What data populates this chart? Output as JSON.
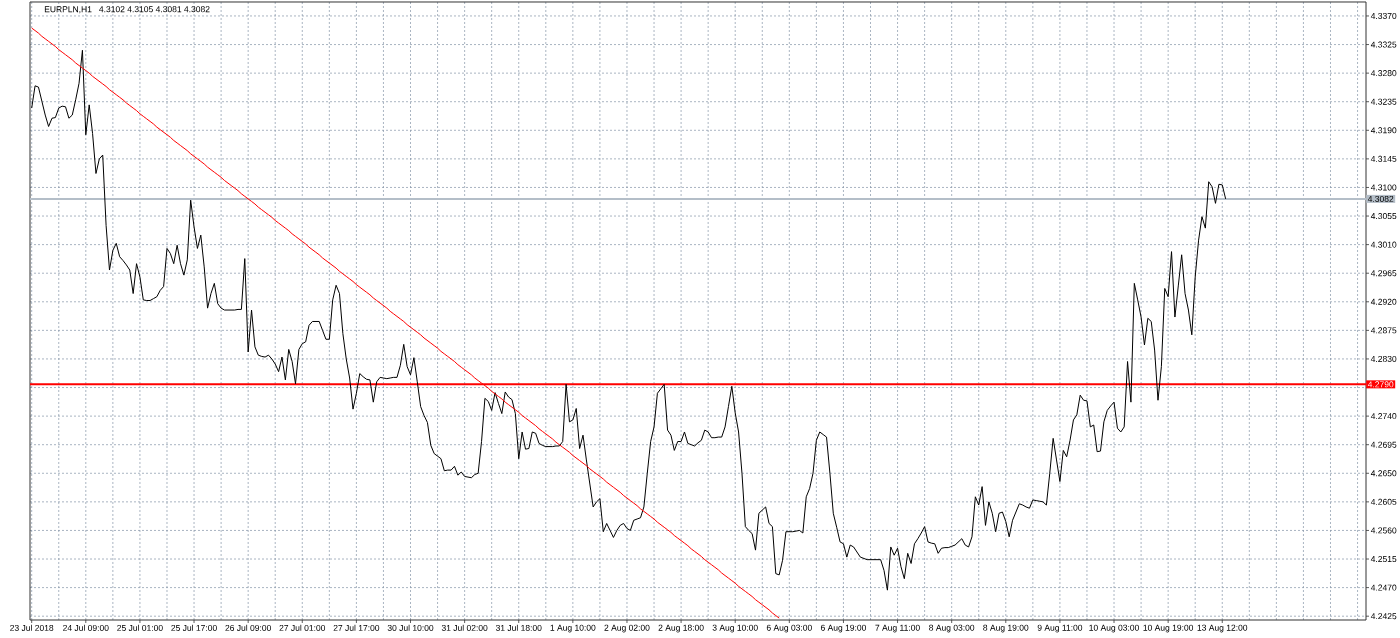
{
  "chart_data": {
    "type": "line",
    "title": "EURPLN,H1",
    "subtitle": "4.3102 4.3105 4.3081 4.3082",
    "categories": [
      "23 Jul 2018",
      null,
      null,
      null,
      null,
      null,
      null,
      null,
      null,
      null,
      null,
      null,
      null,
      null,
      null,
      null,
      "24 Jul 09:00",
      null,
      null,
      null,
      null,
      null,
      null,
      null,
      null,
      null,
      null,
      null,
      null,
      null,
      null,
      null,
      "25 Jul 01:00",
      null,
      null,
      null,
      null,
      null,
      null,
      null,
      null,
      null,
      null,
      null,
      null,
      null,
      null,
      null,
      "25 Jul 17:00",
      null,
      null,
      null,
      null,
      null,
      null,
      null,
      null,
      null,
      null,
      null,
      null,
      null,
      null,
      null,
      "26 Jul 09:00",
      null,
      null,
      null,
      null,
      null,
      null,
      null,
      null,
      null,
      null,
      null,
      null,
      null,
      null,
      null,
      "27 Jul 01:00",
      null,
      null,
      null,
      null,
      null,
      null,
      null,
      null,
      null,
      null,
      null,
      null,
      null,
      null,
      null,
      "27 Jul 17:00",
      null,
      null,
      null,
      null,
      null,
      null,
      null,
      null,
      null,
      null,
      null,
      null,
      null,
      null,
      null,
      "30 Jul 10:00",
      null,
      null,
      null,
      null,
      null,
      null,
      null,
      null,
      null,
      null,
      null,
      null,
      null,
      null,
      null,
      "31 Jul 02:00",
      null,
      null,
      null,
      null,
      null,
      null,
      null,
      null,
      null,
      null,
      null,
      null,
      null,
      null,
      null,
      "31 Jul 18:00",
      null,
      null,
      null,
      null,
      null,
      null,
      null,
      null,
      null,
      null,
      null,
      null,
      null,
      null,
      null,
      "1 Aug 10:00",
      null,
      null,
      null,
      null,
      null,
      null,
      null,
      null,
      null,
      null,
      null,
      null,
      null,
      null,
      null,
      "2 Aug 02:00",
      null,
      null,
      null,
      null,
      null,
      null,
      null,
      null,
      null,
      null,
      null,
      null,
      null,
      null,
      null,
      "2 Aug 18:00",
      null,
      null,
      null,
      null,
      null,
      null,
      null,
      null,
      null,
      null,
      null,
      null,
      null,
      null,
      null,
      "3 Aug 10:00",
      null,
      null,
      null,
      null,
      null,
      null,
      null,
      null,
      null,
      null,
      null,
      null,
      null,
      null,
      null,
      "6 Aug 03:00",
      null,
      null,
      null,
      null,
      null,
      null,
      null,
      null,
      null,
      null,
      null,
      null,
      null,
      null,
      null,
      "6 Aug 19:00",
      null,
      null,
      null,
      null,
      null,
      null,
      null,
      null,
      null,
      null,
      null,
      null,
      null,
      null,
      null,
      "7 Aug 11:00",
      null,
      null,
      null,
      null,
      null,
      null,
      null,
      null,
      null,
      null,
      null,
      null,
      null,
      null,
      null,
      "8 Aug 03:00",
      null,
      null,
      null,
      null,
      null,
      null,
      null,
      null,
      null,
      null,
      null,
      null,
      null,
      null,
      null,
      "8 Aug 19:00",
      null,
      null,
      null,
      null,
      null,
      null,
      null,
      null,
      null,
      null,
      null,
      null,
      null,
      null,
      null,
      "9 Aug 11:00",
      null,
      null,
      null,
      null,
      null,
      null,
      null,
      null,
      null,
      null,
      null,
      null,
      null,
      null,
      null,
      "10 Aug 03:00",
      null,
      null,
      null,
      null,
      null,
      null,
      null,
      null,
      null,
      null,
      null,
      null,
      null,
      null,
      null,
      "10 Aug 19:00",
      null,
      null,
      null,
      null,
      null,
      null,
      null,
      null,
      null,
      null,
      null,
      null,
      null,
      null,
      null,
      "13 Aug 12:00",
      null,
      null,
      null,
      null,
      null,
      null,
      null,
      null,
      null,
      null,
      null,
      null,
      null,
      null,
      null,
      null,
      null,
      null,
      null,
      null,
      null,
      null,
      null,
      null,
      null,
      null,
      null,
      null,
      null,
      null,
      null,
      null,
      null,
      null,
      null,
      null,
      null,
      null,
      null,
      null,
      null,
      null
    ],
    "series": [
      {
        "color": "#000000",
        "values": [
          4.3225,
          4.326,
          4.3258,
          4.3236,
          4.3214,
          4.3196,
          4.3209,
          4.321,
          4.3225,
          4.3228,
          4.3227,
          4.3209,
          4.3214,
          4.3238,
          4.3264,
          4.3316,
          4.3183,
          4.323,
          4.3185,
          4.3122,
          4.3145,
          4.3151,
          4.304,
          4.297,
          4.3001,
          4.3012,
          4.2991,
          4.2985,
          4.2978,
          4.297,
          4.2933,
          4.298,
          4.2959,
          4.2923,
          4.2922,
          4.2922,
          4.2925,
          4.2928,
          4.2938,
          4.2944,
          4.3004,
          4.2996,
          4.298,
          4.3009,
          4.298,
          4.2962,
          4.2986,
          4.308,
          4.3038,
          4.3004,
          4.3025,
          4.2975,
          4.291,
          4.2933,
          4.2949,
          4.2917,
          4.291,
          4.2907,
          4.2907,
          4.2907,
          4.2907,
          4.2908,
          4.2908,
          4.2988,
          4.2841,
          4.2907,
          4.2849,
          4.2836,
          4.2834,
          4.2833,
          4.2836,
          4.283,
          4.2822,
          4.281,
          4.2833,
          4.2797,
          4.2845,
          4.2826,
          4.2791,
          4.2845,
          4.2854,
          4.2857,
          4.2883,
          4.2889,
          4.2889,
          4.2889,
          4.2875,
          4.2861,
          4.2861,
          4.2923,
          4.2946,
          4.2933,
          4.287,
          4.283,
          4.28,
          4.2751,
          4.2776,
          4.2807,
          4.2802,
          4.2798,
          4.2797,
          4.2762,
          4.2794,
          4.2801,
          4.28,
          4.2799,
          4.28,
          4.2801,
          4.2801,
          4.282,
          4.2853,
          4.2818,
          4.2805,
          4.2832,
          4.2794,
          4.2755,
          4.2741,
          4.273,
          4.2694,
          4.2681,
          4.2677,
          4.2673,
          4.2654,
          4.2655,
          4.2655,
          4.2661,
          4.2647,
          4.2652,
          4.2645,
          4.2644,
          4.2643,
          4.2648,
          4.265,
          4.27,
          4.2768,
          4.2763,
          4.2749,
          4.2777,
          4.276,
          4.2744,
          4.2778,
          4.277,
          4.2766,
          4.2744,
          4.2673,
          4.2715,
          4.2688,
          4.2689,
          4.2715,
          4.2713,
          4.2697,
          4.2694,
          4.2692,
          4.2692,
          4.2692,
          4.2693,
          4.2693,
          4.27,
          4.279,
          4.2731,
          4.2734,
          4.2752,
          4.2689,
          4.271,
          4.2671,
          4.2634,
          4.2597,
          4.2605,
          4.261,
          4.2558,
          4.2571,
          4.256,
          4.2549,
          4.256,
          4.2568,
          4.2571,
          4.2563,
          4.256,
          4.2576,
          4.2578,
          4.258,
          4.2597,
          4.265,
          4.27,
          4.2723,
          4.2776,
          4.2783,
          4.279,
          4.2718,
          4.271,
          4.2686,
          4.27,
          4.27,
          4.2715,
          4.2697,
          4.2695,
          4.2693,
          4.2698,
          4.2702,
          4.2718,
          4.2715,
          4.2706,
          4.2706,
          4.2707,
          4.2707,
          4.2723,
          4.2755,
          4.2787,
          4.2745,
          4.2715,
          4.265,
          4.2566,
          4.256,
          4.2555,
          4.2529,
          4.2587,
          4.2592,
          4.2597,
          4.2571,
          4.2566,
          4.2492,
          4.249,
          4.2513,
          4.2558,
          4.2558,
          4.2558,
          4.2559,
          4.256,
          4.2556,
          4.2613,
          4.2626,
          4.265,
          4.2702,
          4.2715,
          4.2711,
          4.2707,
          4.265,
          4.2587,
          4.2565,
          4.2542,
          4.2539,
          4.2518,
          4.2537,
          4.2534,
          4.2526,
          4.2518,
          4.2516,
          4.2514,
          4.2514,
          4.2514,
          4.2514,
          4.2514,
          4.2497,
          4.2466,
          4.2534,
          4.2521,
          4.2532,
          4.2503,
          4.2484,
          4.2524,
          4.2508,
          4.2539,
          4.2547,
          4.2556,
          4.2566,
          4.2542,
          4.254,
          4.2539,
          4.2524,
          4.2532,
          4.2533,
          4.2533,
          4.2535,
          4.2537,
          4.2542,
          4.2547,
          4.2537,
          4.2534,
          4.255,
          4.2613,
          4.26,
          4.2629,
          4.2568,
          4.2605,
          4.2587,
          4.2558,
          4.2587,
          4.2589,
          4.2574,
          4.255,
          4.2576,
          4.2589,
          4.2602,
          4.26,
          4.2597,
          4.2595,
          4.2608,
          4.2607,
          4.2606,
          4.2605,
          4.26,
          4.265,
          4.2705,
          4.2671,
          4.2637,
          4.2686,
          4.2676,
          4.2702,
          4.2734,
          4.2742,
          4.2773,
          4.2765,
          4.2764,
          4.2723,
          4.2726,
          4.2684,
          4.2685,
          4.2731,
          4.2749,
          4.2756,
          4.2762,
          4.2721,
          4.2715,
          4.2723,
          4.2826,
          4.2762,
          4.2949,
          4.2923,
          4.2896,
          4.2852,
          4.2894,
          4.2889,
          4.2844,
          4.2765,
          4.2818,
          4.2941,
          4.2928,
          4.2999,
          4.2896,
          4.2945,
          4.2994,
          4.2933,
          4.2907,
          4.2868,
          4.2959,
          4.3017,
          4.3054,
          4.3036,
          4.3109,
          4.3101,
          4.3075,
          4.3105,
          4.3104,
          4.3082,
          null,
          null,
          null,
          null,
          null,
          null,
          null,
          null,
          null,
          null,
          null,
          null,
          null,
          null,
          null,
          null,
          null,
          null,
          null,
          null,
          null,
          null,
          null,
          null,
          null,
          null,
          null,
          null,
          null,
          null,
          null,
          null,
          null,
          null,
          null,
          null,
          null,
          null,
          null,
          null,
          null
        ]
      },
      {
        "type": "line",
        "color": "#ff0000",
        "values": [
          4.3351,
          4.3347,
          4.3343,
          4.3338,
          4.3334,
          4.333,
          4.3326,
          4.3322,
          4.3317,
          4.3313,
          4.3309,
          4.3305,
          4.3301,
          4.3296,
          4.3292,
          4.3288,
          4.3284,
          4.328,
          4.3275,
          4.3271,
          4.3267,
          4.3263,
          4.3259,
          4.3254,
          4.325,
          4.3246,
          4.3242,
          4.3238,
          4.3233,
          4.3229,
          4.3225,
          4.3221,
          4.3216,
          4.3212,
          4.3208,
          4.3204,
          4.32,
          4.3195,
          4.3191,
          4.3187,
          4.3183,
          4.3179,
          4.3174,
          4.317,
          4.3166,
          4.3162,
          4.3158,
          4.3153,
          4.3149,
          4.3145,
          4.3141,
          4.3137,
          4.3132,
          4.3128,
          4.3124,
          4.312,
          4.3116,
          4.3111,
          4.3107,
          4.3103,
          4.3099,
          4.3095,
          4.309,
          4.3086,
          4.3082,
          4.3078,
          4.3074,
          4.3069,
          4.3065,
          4.3061,
          4.3057,
          4.3053,
          4.3048,
          4.3044,
          4.304,
          4.3036,
          4.3032,
          4.3027,
          4.3023,
          4.3019,
          4.3015,
          4.3011,
          4.3006,
          4.3002,
          4.2998,
          4.2994,
          4.2989,
          4.2985,
          4.2981,
          4.2977,
          4.2973,
          4.2968,
          4.2964,
          4.296,
          4.2956,
          4.2952,
          4.2947,
          4.2943,
          4.2939,
          4.2935,
          4.2931,
          4.2926,
          4.2922,
          4.2918,
          4.2914,
          4.291,
          4.2905,
          4.2901,
          4.2897,
          4.2893,
          4.2889,
          4.2884,
          4.288,
          4.2876,
          4.2872,
          4.2868,
          4.2863,
          4.2859,
          4.2855,
          4.2851,
          4.2847,
          4.2842,
          4.2838,
          4.2834,
          4.283,
          4.2826,
          4.2821,
          4.2817,
          4.2813,
          4.2809,
          4.2805,
          4.28,
          4.2796,
          4.2792,
          4.2788,
          4.2784,
          4.2779,
          4.2775,
          4.2771,
          4.2767,
          4.2762,
          4.2758,
          4.2754,
          4.275,
          4.2746,
          4.2741,
          4.2737,
          4.2733,
          4.2729,
          4.2725,
          4.272,
          4.2716,
          4.2712,
          4.2708,
          4.2704,
          4.2699,
          4.2695,
          4.2691,
          4.2687,
          4.2683,
          4.2678,
          4.2674,
          4.267,
          4.2666,
          4.2662,
          4.2657,
          4.2653,
          4.2649,
          4.2645,
          4.2641,
          4.2636,
          4.2632,
          4.2628,
          4.2624,
          4.262,
          4.2615,
          4.2611,
          4.2607,
          4.2603,
          4.2599,
          4.2594,
          4.259,
          4.2586,
          4.2582,
          4.2578,
          4.2573,
          4.2569,
          4.2565,
          4.2561,
          4.2557,
          4.2552,
          4.2548,
          4.2544,
          4.254,
          4.2536,
          4.2531,
          4.2527,
          4.2523,
          4.2519,
          4.2514,
          4.251,
          4.2506,
          4.2502,
          4.2498,
          4.2493,
          4.2489,
          4.2485,
          4.2481,
          4.2477,
          4.2472,
          4.2468,
          4.2464,
          4.246,
          4.2456,
          4.2451,
          4.2447,
          4.2443,
          4.2439,
          4.2435,
          4.243,
          4.2426,
          4.2422,
          null,
          null,
          null,
          null,
          null,
          null,
          null,
          null,
          null,
          null,
          null,
          null,
          null,
          null,
          null,
          null,
          null,
          null,
          null,
          null,
          null,
          null,
          null,
          null,
          null,
          null,
          null,
          null,
          null,
          null,
          null,
          null,
          null,
          null,
          null,
          null,
          null,
          null,
          null,
          null,
          null,
          null,
          null,
          null,
          null,
          null,
          null,
          null,
          null,
          null,
          null,
          null,
          null,
          null,
          null,
          null,
          null,
          null,
          null,
          null,
          null,
          null,
          null,
          null,
          null,
          null,
          null,
          null,
          null,
          null,
          null,
          null,
          null,
          null,
          null,
          null,
          null,
          null,
          null,
          null,
          null,
          null,
          null,
          null,
          null,
          null,
          null,
          null,
          null,
          null,
          null,
          null,
          null,
          null,
          null,
          null,
          null,
          null,
          null,
          null,
          null,
          null,
          null,
          null,
          null,
          null,
          null,
          null,
          null,
          null,
          null,
          null,
          null,
          null,
          null,
          null,
          null,
          null,
          null,
          null,
          null,
          null,
          null,
          null,
          null,
          null,
          null,
          null,
          null,
          null,
          null,
          null,
          null,
          null,
          null,
          null,
          null,
          null,
          null,
          null,
          null,
          null,
          null,
          null,
          null,
          null,
          null,
          null,
          null,
          null,
          null,
          null,
          null,
          null,
          null,
          null,
          null,
          null,
          null,
          null,
          null,
          null,
          null,
          null,
          null,
          null,
          null,
          null,
          null,
          null,
          null,
          null,
          null
        ]
      }
    ],
    "ylim": [
      4.2419,
      4.3392
    ],
    "yticks": [
      {
        "value": 4.2425,
        "label": "4.2425"
      },
      {
        "value": 4.247,
        "label": "4.2470"
      },
      {
        "value": 4.2515,
        "label": "4.2515"
      },
      {
        "value": 4.256,
        "label": "4.2560"
      },
      {
        "value": 4.2605,
        "label": "4.2605"
      },
      {
        "value": 4.265,
        "label": "4.2650"
      },
      {
        "value": 4.2695,
        "label": "4.2695"
      },
      {
        "value": 4.274,
        "label": "4.2740"
      },
      {
        "value": 4.2785,
        "label": null
      },
      {
        "value": 4.283,
        "label": "4.2830"
      },
      {
        "value": 4.2875,
        "label": "4.2875"
      },
      {
        "value": 4.292,
        "label": "4.2920"
      },
      {
        "value": 4.2965,
        "label": "4.2965"
      },
      {
        "value": 4.301,
        "label": "4.3010"
      },
      {
        "value": 4.3055,
        "label": "4.3055"
      },
      {
        "value": 4.31,
        "label": "4.3100"
      },
      {
        "value": 4.3145,
        "label": "4.3145"
      },
      {
        "value": 4.319,
        "label": "4.3190"
      },
      {
        "value": 4.3235,
        "label": "4.3235"
      },
      {
        "value": 4.328,
        "label": "4.3280"
      },
      {
        "value": 4.3325,
        "label": "4.3325"
      },
      {
        "value": 4.337,
        "label": "4.3370"
      }
    ],
    "grid": true,
    "ref_lines": [
      {
        "axis": "y",
        "value": 4.279,
        "label": "4.2790",
        "color": "#ff0000"
      },
      {
        "axis": "y",
        "value": 4.3082,
        "label": "4.3082",
        "color": "#b4bec8"
      }
    ]
  }
}
